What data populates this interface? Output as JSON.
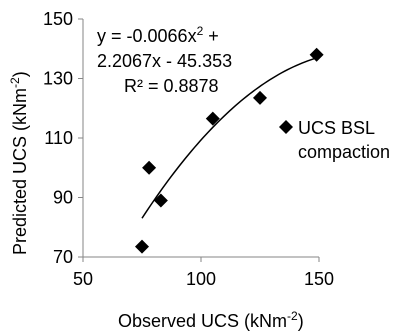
{
  "chart_data": {
    "type": "scatter",
    "xlabel": "Observed UCS (kNm",
    "xlabel_sup": "-2",
    "xlabel_end": ")",
    "ylabel": "Predicted UCS (kNm",
    "ylabel_sup": "-2",
    "ylabel_end": ")",
    "xlim": [
      50,
      150
    ],
    "ylim": [
      70,
      150
    ],
    "xticks": [
      "50",
      "100",
      "150"
    ],
    "yticks": [
      "70",
      "90",
      "110",
      "130",
      "150"
    ],
    "series": [
      {
        "name": "UCS BSL compaction",
        "marker": "diamond",
        "color": "#000000",
        "points": [
          {
            "x": 75,
            "y": 73.5
          },
          {
            "x": 78,
            "y": 100
          },
          {
            "x": 83,
            "y": 89
          },
          {
            "x": 105,
            "y": 116.5
          },
          {
            "x": 125,
            "y": 123.5
          },
          {
            "x": 149,
            "y": 138
          }
        ]
      }
    ],
    "trendline": {
      "type": "polynomial",
      "coefficients": [
        -0.0066,
        2.2067,
        -45.353
      ],
      "x_range": [
        75,
        149
      ],
      "equation_line1_a": "y = -0.0066x",
      "equation_line1_sup": "2",
      "equation_line1_b": " +",
      "equation_line2": "2.2067x - 45.353",
      "r2_text": "R² = 0.8878"
    },
    "legend": {
      "entry_line1": "UCS BSL",
      "entry_line2": "compaction",
      "placement": "right"
    },
    "grid": false
  }
}
